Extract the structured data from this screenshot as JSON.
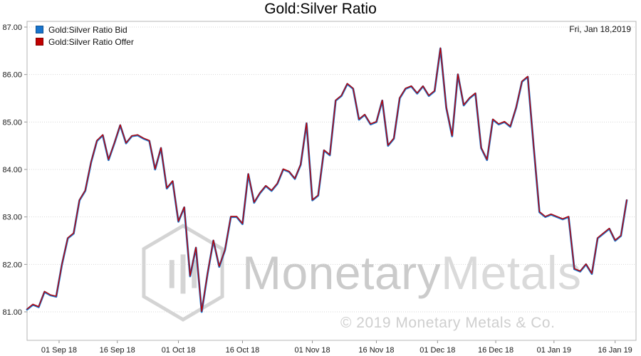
{
  "header": {
    "date_label": "Fri, Jan 18,2019"
  },
  "watermark": {
    "brand_monetary": "Monetary",
    "brand_metals": "Metals",
    "copyright": "© 2019 Monetary Metals & Co."
  },
  "chart_data": {
    "type": "line",
    "title": "Gold:Silver Ratio",
    "xlabel": "",
    "ylabel": "",
    "x_unit": "trading days, late Aug 2018 through Fri Jan 18 2019",
    "x_tick_labels": [
      "01 Sep 18",
      "16 Sep 18",
      "01 Oct 18",
      "16 Oct 18",
      "01 Nov 18",
      "16 Nov 18",
      "01 Dec 18",
      "16 Dec 18",
      "01 Jan 19",
      "16 Jan 19"
    ],
    "x_tick_positions": [
      5.5,
      15.5,
      26,
      37,
      49,
      60,
      70.5,
      80.5,
      90.5,
      101
    ],
    "y_ticks": [
      87,
      86,
      85,
      84,
      83,
      82,
      81
    ],
    "y_tick_labels": [
      "87.00",
      "86.00",
      "85.00",
      "84.00",
      "83.00",
      "82.00",
      "81.00"
    ],
    "ylim": [
      80.4,
      87.12
    ],
    "grid": "horizontal-dotted",
    "legend_position": "top-left",
    "series": [
      {
        "name": "Gold:Silver Ratio Bid",
        "color": "#1874CD",
        "values": [
          81.05,
          81.15,
          81.1,
          81.42,
          81.35,
          81.32,
          82.0,
          82.55,
          82.65,
          83.35,
          83.55,
          84.15,
          84.6,
          84.72,
          84.2,
          84.55,
          84.93,
          84.55,
          84.7,
          84.72,
          84.65,
          84.6,
          84.0,
          84.45,
          83.6,
          83.75,
          82.9,
          83.2,
          81.75,
          82.35,
          81.0,
          81.8,
          82.5,
          81.95,
          82.3,
          83.0,
          83.0,
          82.85,
          83.9,
          83.3,
          83.5,
          83.65,
          83.55,
          83.7,
          84.0,
          83.95,
          83.8,
          84.1,
          84.97,
          83.35,
          83.45,
          84.4,
          84.3,
          85.45,
          85.55,
          85.8,
          85.7,
          85.05,
          85.15,
          84.95,
          85.0,
          85.45,
          84.5,
          84.65,
          85.5,
          85.7,
          85.75,
          85.6,
          85.75,
          85.55,
          85.65,
          86.55,
          85.3,
          84.7,
          86.0,
          85.35,
          85.5,
          85.6,
          84.45,
          84.2,
          85.05,
          84.95,
          85.0,
          84.9,
          85.3,
          85.85,
          85.95,
          84.5,
          83.1,
          83.0,
          83.05,
          83.0,
          82.95,
          83.0,
          81.9,
          81.85,
          82.0,
          81.8,
          82.55,
          82.65,
          82.75,
          82.5,
          82.6,
          83.35
        ]
      },
      {
        "name": "Gold:Silver Ratio Offer",
        "color": "#C00000",
        "offset_from_bid": 0.01
      }
    ]
  }
}
